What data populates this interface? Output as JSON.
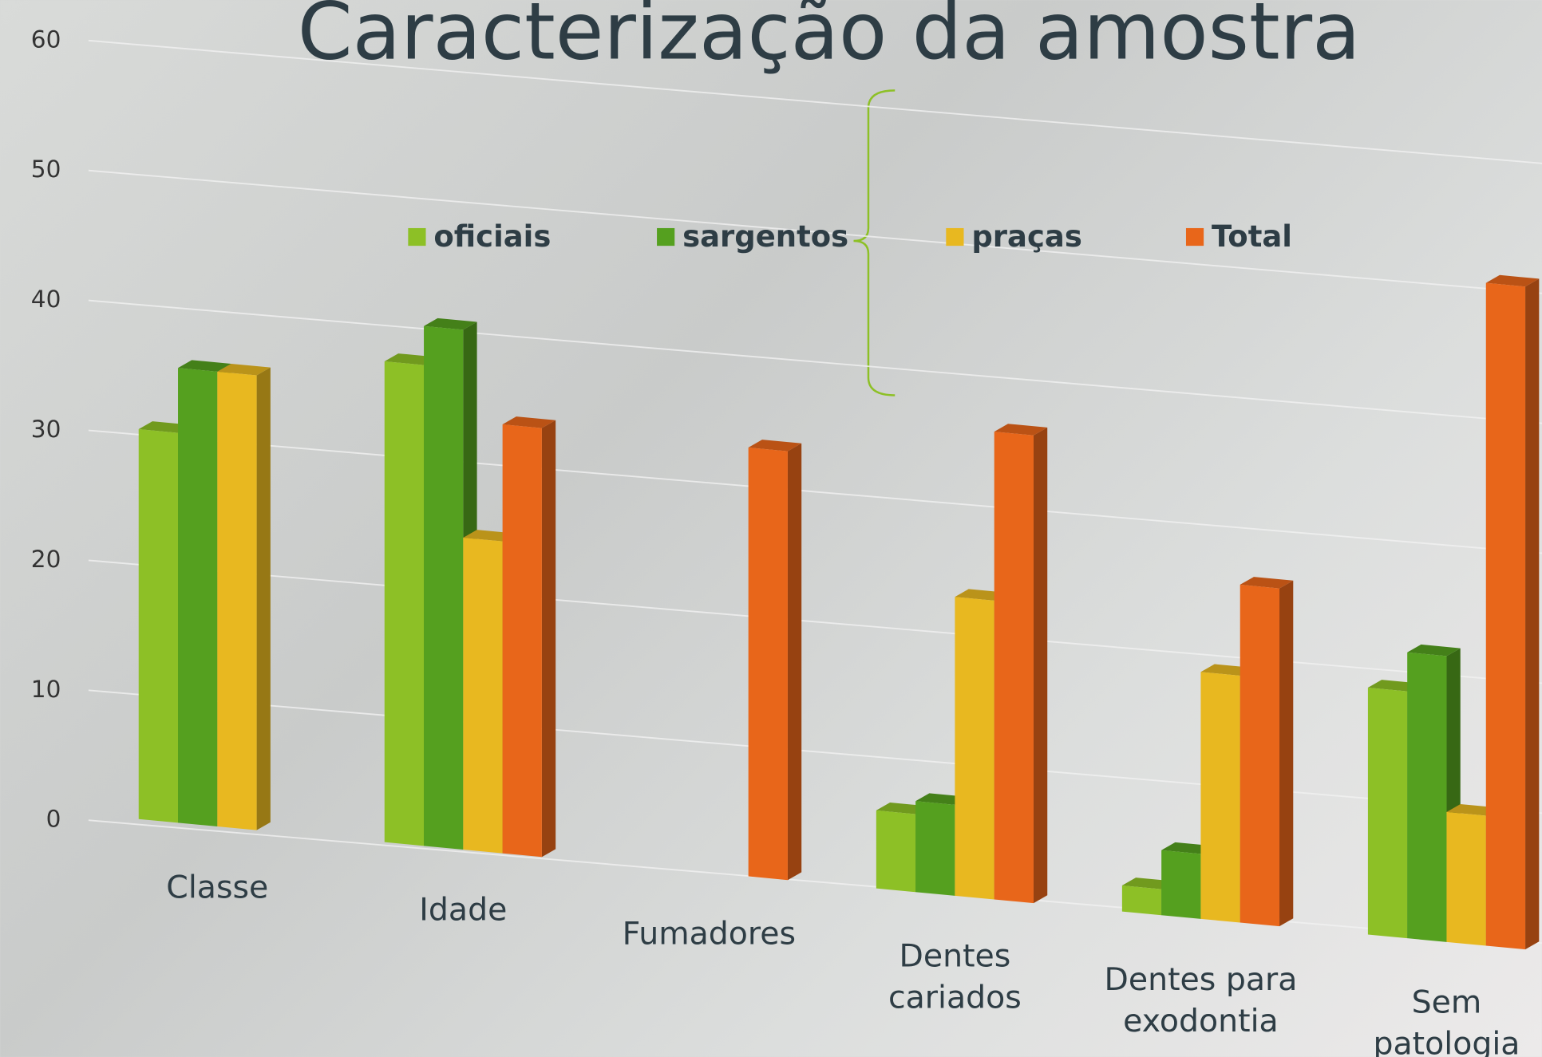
{
  "chart_data": {
    "type": "bar3d",
    "title": "Caracterização da amostra",
    "categories": [
      "Classe",
      "Idade",
      "Fumadores",
      "Dentes cariados",
      "Dentes para exodontia",
      "Sem patologia"
    ],
    "series": [
      {
        "name": "oficiais",
        "color": "#8dc026",
        "values": [
          30,
          37,
          null,
          6,
          2,
          19
        ]
      },
      {
        "name": "sargentos",
        "color": "#55a01f",
        "values": [
          35,
          40,
          null,
          7,
          5,
          22
        ]
      },
      {
        "name": "praças",
        "color": "#e8b820",
        "values": [
          35,
          24,
          null,
          23,
          19,
          10
        ]
      },
      {
        "name": "Total",
        "color": "#e8661a",
        "values": [
          null,
          33,
          33,
          36,
          26,
          51
        ]
      }
    ],
    "ylim": [
      0,
      60
    ],
    "yticks": [
      0,
      10,
      20,
      30,
      40,
      50,
      60
    ],
    "grid": true
  }
}
